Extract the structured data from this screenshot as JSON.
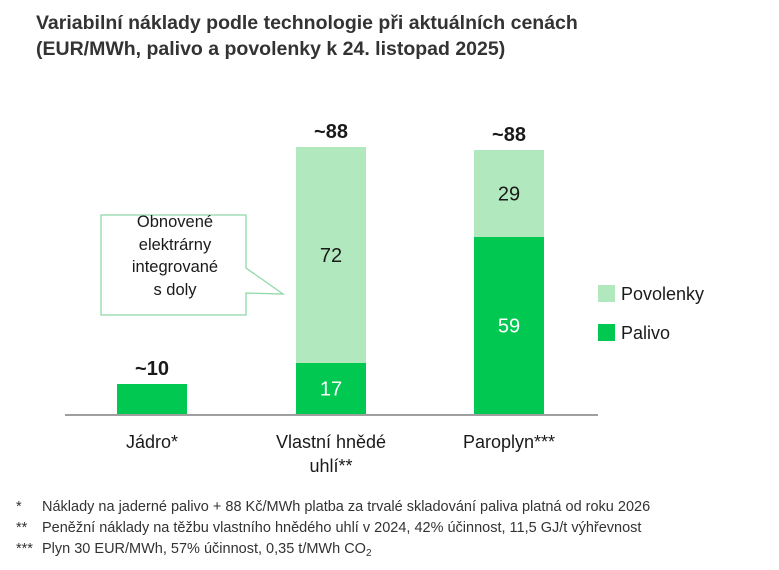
{
  "title_line1": "Variabilní náklady podle technologie při aktuálních cenách",
  "title_line2": "(EUR/MWh, palivo a povolenky k 24. listopad 2025)",
  "callout": {
    "lines": [
      "Obnovené",
      "elektrárny",
      "integrované",
      "s doly"
    ]
  },
  "colors": {
    "palivo": "#00c850",
    "povolenky": "#b1e8bd",
    "axis": "#666666",
    "callout_border": "#8fd8a8"
  },
  "footnotes": [
    {
      "mark": "*",
      "text": "Náklady na jaderné palivo + 88 Kč/MWh platba za trvalé skladování paliva platná od roku 2026"
    },
    {
      "mark": "**",
      "text": "Peněžní náklady na těžbu vlastního hnědého uhlí v 2024, 42% účinnost, 11,5 GJ/t výhřevnost"
    },
    {
      "mark": "***",
      "text": "Plyn 30 EUR/MWh, 57% účinnost, 0,35 t/MWh CO",
      "sub": "2"
    }
  ],
  "chart_data": {
    "type": "bar",
    "stacked": true,
    "categories": [
      [
        "Jádro*"
      ],
      [
        "Vlastní hnědé",
        "uhlí**"
      ],
      [
        "Paroplyn***"
      ]
    ],
    "series": [
      {
        "name": "Palivo",
        "values": [
          10,
          17,
          59
        ],
        "labels": [
          "",
          "17",
          "59"
        ]
      },
      {
        "name": "Povolenky",
        "values": [
          0,
          72,
          29
        ],
        "labels": [
          "",
          "72",
          "29"
        ]
      }
    ],
    "totals": [
      "~10",
      "~88",
      "~88"
    ],
    "legend": [
      {
        "name": "Povolenky",
        "color_key": "povolenky"
      },
      {
        "name": "Palivo",
        "color_key": "palivo"
      }
    ],
    "legend_position": "right",
    "ylim": [
      0,
      88
    ],
    "gridlines": false
  }
}
